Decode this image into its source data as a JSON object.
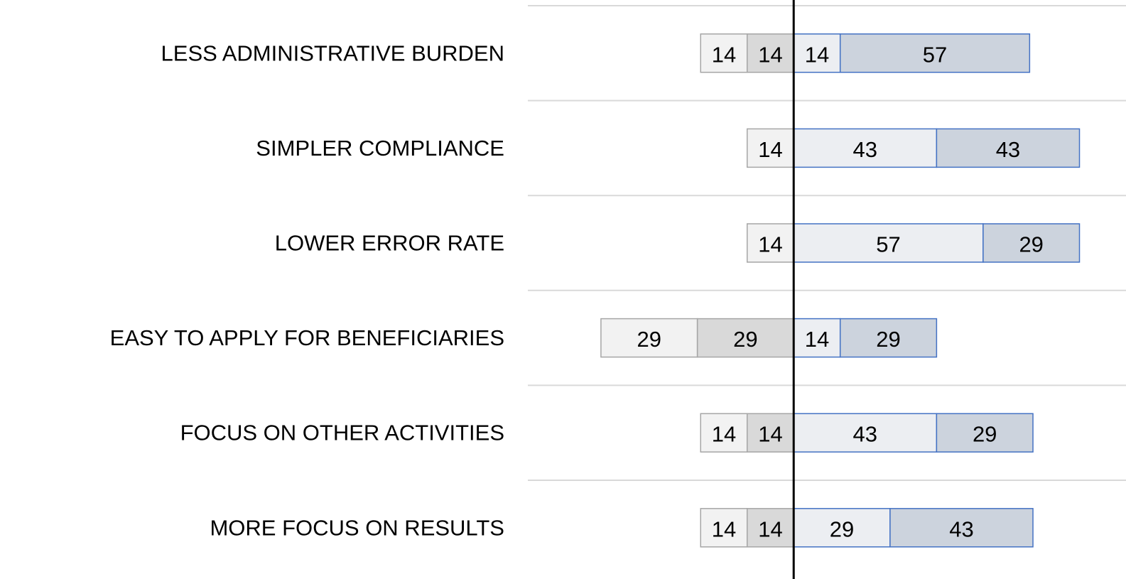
{
  "chart_data": {
    "type": "diverging-bar",
    "categories": [
      "LESS ADMINISTRATIVE BURDEN",
      "SIMPLER COMPLIANCE",
      "LOWER ERROR RATE",
      "EASY TO APPLY FOR BENEFICIARIES",
      "FOCUS ON OTHER ACTIVITIES",
      "MORE FOCUS ON RESULTS"
    ],
    "series": [
      {
        "color": "#d9d9d9",
        "stroke": "#a6a6a6",
        "values": [
          -14,
          null,
          null,
          -29,
          -14,
          -14
        ],
        "value_labels": [
          "14",
          null,
          null,
          "29",
          "14",
          "14"
        ]
      },
      {
        "color": "#f2f2f2",
        "stroke": "#a6a6a6",
        "values": [
          -14,
          -14,
          -14,
          -29,
          -14,
          -14
        ],
        "value_labels": [
          "14",
          "14",
          "14",
          "29",
          "14",
          "14"
        ]
      },
      {
        "color": "#eceef2",
        "stroke": "#4472c4",
        "values": [
          14,
          43,
          57,
          14,
          43,
          29
        ]
      },
      {
        "color": "#ccd3dd",
        "stroke": "#4472c4",
        "values": [
          57,
          43,
          29,
          29,
          29,
          43
        ]
      }
    ],
    "xlim": [
      -80,
      100
    ]
  }
}
